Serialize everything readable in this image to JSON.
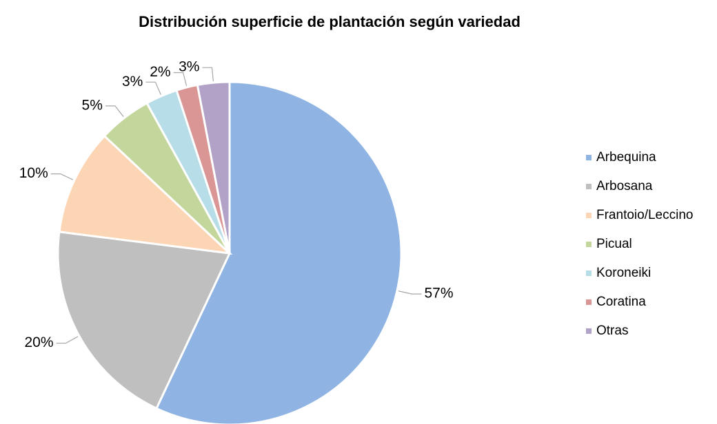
{
  "chart_data": {
    "type": "pie",
    "title": "Distribución superficie de plantación según variedad",
    "categories": [
      "Arbequina",
      "Arbosana",
      "Frantoio/Leccino",
      "Picual",
      "Koroneiki",
      "Coratina",
      "Otras"
    ],
    "values": [
      57,
      20,
      10,
      5,
      3,
      2,
      3
    ],
    "value_labels": [
      "57%",
      "20%",
      "10%",
      "5%",
      "3%",
      "2%",
      "3%"
    ],
    "colors": [
      "#8fb4e3",
      "#bfbfbf",
      "#fcd5b5",
      "#c3d69b",
      "#b7dee8",
      "#d99694",
      "#b3a2c7"
    ],
    "legend": "right"
  }
}
